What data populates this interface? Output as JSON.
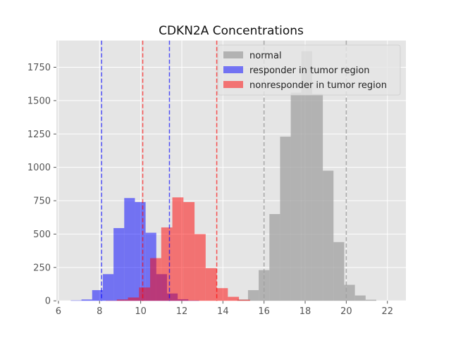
{
  "chart_data": {
    "type": "bar",
    "title": "CDKN2A Concentrations",
    "xlabel": "",
    "ylabel": "",
    "xlim": [
      5.9,
      22.9
    ],
    "ylim": [
      0,
      1950
    ],
    "grid": true,
    "legend_position": "top-right",
    "xticks": [
      6,
      8,
      10,
      12,
      14,
      16,
      18,
      20,
      22
    ],
    "yticks": [
      0,
      250,
      500,
      750,
      1000,
      1250,
      1500,
      1750
    ],
    "colors": {
      "background": "#e5e5e5",
      "grid": "#ffffff",
      "tick": "#555555"
    },
    "series": [
      {
        "name": "normal",
        "color": "#a0a0a0",
        "opacity": 0.75,
        "bin_width": 0.52,
        "bins": [
          {
            "x0": 14.7,
            "count": 10
          },
          {
            "x0": 15.22,
            "count": 80
          },
          {
            "x0": 15.74,
            "count": 230
          },
          {
            "x0": 16.26,
            "count": 650
          },
          {
            "x0": 16.78,
            "count": 1230
          },
          {
            "x0": 17.3,
            "count": 1560
          },
          {
            "x0": 17.82,
            "count": 1870
          },
          {
            "x0": 18.34,
            "count": 1550
          },
          {
            "x0": 18.86,
            "count": 975
          },
          {
            "x0": 19.38,
            "count": 440
          },
          {
            "x0": 19.9,
            "count": 120
          },
          {
            "x0": 20.42,
            "count": 40
          },
          {
            "x0": 20.94,
            "count": 8
          }
        ],
        "lines": [
          16.0,
          20.0
        ]
      },
      {
        "name": "responder in tumor region",
        "color": "#0000ff",
        "opacity": 0.5,
        "bin_width": 0.52,
        "bins": [
          {
            "x0": 6.6,
            "count": 3
          },
          {
            "x0": 7.12,
            "count": 10
          },
          {
            "x0": 7.64,
            "count": 80
          },
          {
            "x0": 8.16,
            "count": 200
          },
          {
            "x0": 8.68,
            "count": 545
          },
          {
            "x0": 9.2,
            "count": 770
          },
          {
            "x0": 9.72,
            "count": 740
          },
          {
            "x0": 10.24,
            "count": 510
          },
          {
            "x0": 10.76,
            "count": 200
          },
          {
            "x0": 11.28,
            "count": 55
          },
          {
            "x0": 11.8,
            "count": 12
          },
          {
            "x0": 12.32,
            "count": 3
          }
        ],
        "lines": [
          8.1,
          11.4
        ]
      },
      {
        "name": "nonresponder in tumor region",
        "color": "#ff0000",
        "opacity": 0.5,
        "bin_width": 0.54,
        "bins": [
          {
            "x0": 8.3,
            "count": 2
          },
          {
            "x0": 8.84,
            "count": 10
          },
          {
            "x0": 9.38,
            "count": 25
          },
          {
            "x0": 9.92,
            "count": 100
          },
          {
            "x0": 10.46,
            "count": 320
          },
          {
            "x0": 11.0,
            "count": 550
          },
          {
            "x0": 11.54,
            "count": 775
          },
          {
            "x0": 12.08,
            "count": 740
          },
          {
            "x0": 12.62,
            "count": 500
          },
          {
            "x0": 13.16,
            "count": 245
          },
          {
            "x0": 13.7,
            "count": 95
          },
          {
            "x0": 14.24,
            "count": 30
          },
          {
            "x0": 14.78,
            "count": 8
          }
        ],
        "lines": [
          10.1,
          13.7
        ]
      }
    ]
  }
}
